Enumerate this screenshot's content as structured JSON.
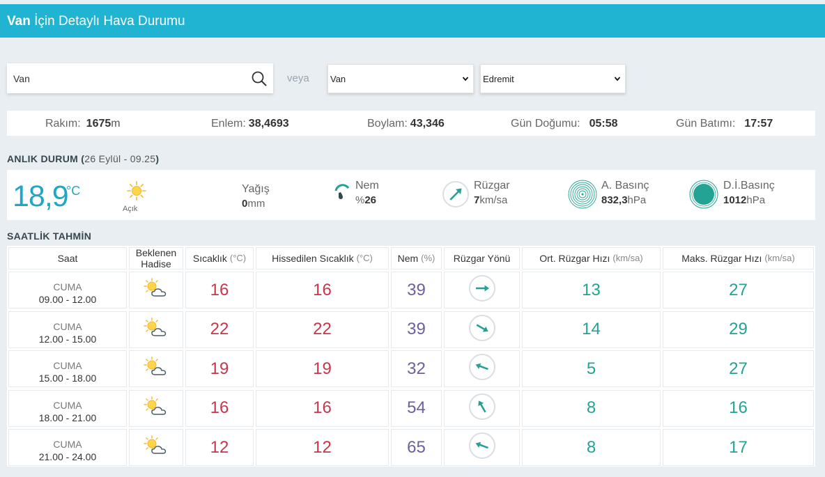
{
  "header": {
    "title_city": "Van",
    "title_rest": "İçin Detaylı Hava Durumu"
  },
  "search": {
    "value": "Van",
    "placeholder": ""
  },
  "veya": "veya",
  "selects": {
    "il": "Van",
    "ilce": "Edremit"
  },
  "info": {
    "rakim_label": "Rakım:",
    "rakim_value": "1675",
    "rakim_unit": "m",
    "enlem_label": "Enlem:",
    "enlem_value": "38,4693",
    "boylam_label": "Boylam:",
    "boylam_value": "43,346",
    "gundogumu_label": "Gün Doğumu:",
    "gundogumu_value": "05:58",
    "gunbatimi_label": "Gün Batımı:",
    "gunbatimi_value": "17:57"
  },
  "current": {
    "section_title": "ANLIK DURUM",
    "section_open": "(",
    "section_date": "26 Eylül - 09.25",
    "section_close": ")",
    "temp": "18,9",
    "temp_unit": "°C",
    "condition": "Açık",
    "yagis_label": "Yağış",
    "yagis_value": "0",
    "yagis_unit": "mm",
    "nem_label": "Nem",
    "nem_prefix": "%",
    "nem_value": "26",
    "ruzgar_label": "Rüzgar",
    "ruzgar_value": "7",
    "ruzgar_unit": "km/sa",
    "abasinc_label": "A. Basınç",
    "abasinc_value": "832,3",
    "abasinc_unit": "hPa",
    "dibasinc_label": "D.İ.Basınç",
    "dibasinc_value": "1012",
    "dibasinc_unit": "hPa",
    "colors": {
      "accent": "#21a6c6",
      "green": "#22a393"
    }
  },
  "hourly": {
    "section_title": "SAATLİK TAHMİN",
    "headers": {
      "saat": "Saat",
      "hadise_1": "Beklenen",
      "hadise_2": "Hadise",
      "sicaklik": "Sıcaklık",
      "sicaklik_unit": "(°C)",
      "hissedilen": "Hissedilen Sıcaklık",
      "hissedilen_unit": "(°C)",
      "nem": "Nem",
      "nem_unit": "(%)",
      "yon": "Rüzgar Yönü",
      "ort": "Ort. Rüzgar Hızı",
      "ort_unit": "(km/sa)",
      "maks": "Maks. Rüzgar Hızı",
      "maks_unit": "(km/sa)"
    },
    "rows": [
      {
        "day": "CUMA",
        "time": "09.00 - 12.00",
        "icon": "partly-cloudy-icon",
        "temp": "16",
        "feels": "16",
        "humidity": "39",
        "wind_dir_deg": 90,
        "wind_avg": "13",
        "wind_max": "27"
      },
      {
        "day": "CUMA",
        "time": "12.00 - 15.00",
        "icon": "partly-cloudy-icon",
        "temp": "22",
        "feels": "22",
        "humidity": "39",
        "wind_dir_deg": 120,
        "wind_avg": "14",
        "wind_max": "29"
      },
      {
        "day": "CUMA",
        "time": "15.00 - 18.00",
        "icon": "partly-cloudy-icon",
        "temp": "19",
        "feels": "19",
        "humidity": "32",
        "wind_dir_deg": 290,
        "wind_avg": "5",
        "wind_max": "27"
      },
      {
        "day": "CUMA",
        "time": "18.00 - 21.00",
        "icon": "partly-cloudy-icon",
        "temp": "16",
        "feels": "16",
        "humidity": "54",
        "wind_dir_deg": 330,
        "wind_avg": "8",
        "wind_max": "16"
      },
      {
        "day": "CUMA",
        "time": "21.00 - 24.00",
        "icon": "partly-cloudy-icon",
        "temp": "12",
        "feels": "12",
        "humidity": "65",
        "wind_dir_deg": 290,
        "wind_avg": "8",
        "wind_max": "17"
      }
    ]
  }
}
